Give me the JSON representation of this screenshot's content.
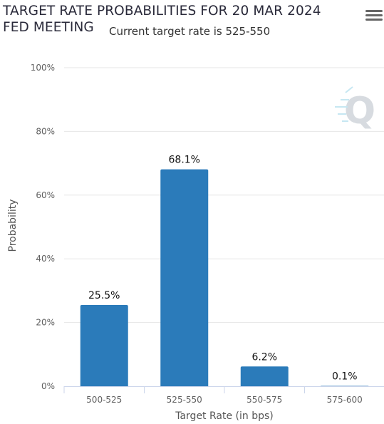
{
  "header": {
    "title": "TARGET RATE PROBABILITIES FOR 20 MAR 2024 FED MEETING",
    "subtitle": "Current target rate is 525-550",
    "menu_icon": "hamburger-menu-icon"
  },
  "watermark_icon": "quikstrike-q-logo",
  "chart_data": {
    "type": "bar",
    "title": "TARGET RATE PROBABILITIES FOR 20 MAR 2024 FED MEETING",
    "subtitle": "Current target rate is 525-550",
    "categories": [
      "500-525",
      "525-550",
      "550-575",
      "575-600"
    ],
    "values": [
      25.5,
      68.1,
      6.2,
      0.1
    ],
    "data_labels": [
      "25.5%",
      "68.1%",
      "6.2%",
      "0.1%"
    ],
    "xlabel": "Target Rate (in bps)",
    "ylabel": "Probability",
    "ylim": [
      0,
      100
    ],
    "yticks": [
      0,
      20,
      40,
      60,
      80,
      100
    ],
    "ytick_labels": [
      "0%",
      "20%",
      "40%",
      "60%",
      "80%",
      "100%"
    ],
    "grid": true,
    "legend": "none",
    "bar_color": "#2b7bba"
  }
}
